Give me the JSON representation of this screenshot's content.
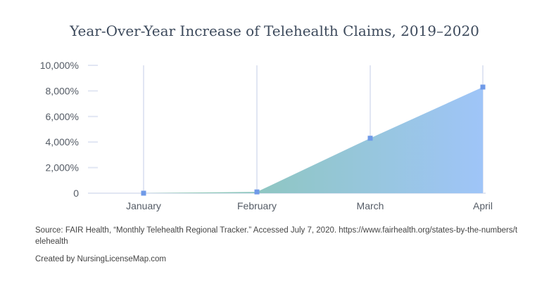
{
  "chart_data": {
    "type": "area",
    "title": "Year-Over-Year Increase of Telehealth Claims, 2019–2020",
    "categories": [
      "January",
      "February",
      "March",
      "April"
    ],
    "series": [
      {
        "values": [
          0,
          100,
          4300,
          8300
        ]
      }
    ],
    "ylim": [
      0,
      10000
    ],
    "yticks": [
      0,
      2000,
      4000,
      6000,
      8000,
      10000
    ],
    "ytick_labels": [
      "0",
      "2,000%",
      "4,000%",
      "6,000%",
      "8,000%",
      "10,000%"
    ],
    "grid": "vertical",
    "colors": {
      "gradient_start": "#86c7a6",
      "gradient_end": "#9fc5f8",
      "marker": "#6f9ae8",
      "grid": "#e1e6f3"
    }
  },
  "footer": {
    "source": "Source: FAIR Health, “Monthly Telehealth Regional Tracker.” Accessed July 7, 2020. https://www.fairhealth.org/states-by-the-numbers/telehealth",
    "credit": "Created by NursingLicenseMap.com"
  }
}
